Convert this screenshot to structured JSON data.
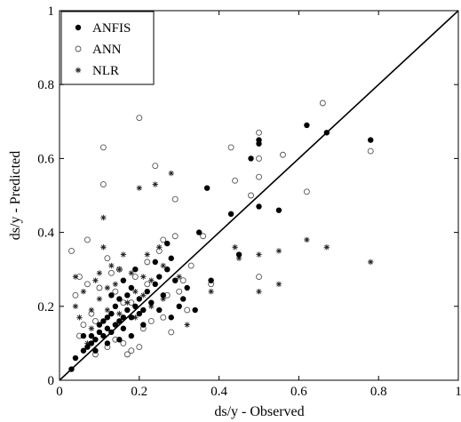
{
  "chart_data": {
    "type": "scatter",
    "xlabel": "ds/y - Observed",
    "ylabel": "ds/y - Predicted",
    "xlim": [
      0,
      1
    ],
    "ylim": [
      0,
      1
    ],
    "x_ticks": [
      "0",
      "0.2",
      "0.4",
      "0.6",
      "0.8",
      "1"
    ],
    "y_ticks": [
      "0",
      "0.2",
      "0.4",
      "0.6",
      "0.8",
      "1"
    ],
    "grid": false,
    "legend_position": "top-left",
    "reference_line": {
      "from": [
        0,
        0
      ],
      "to": [
        1,
        1
      ]
    },
    "series": [
      {
        "name": "ANFIS",
        "marker": "filled-circle",
        "points": [
          [
            0.03,
            0.03
          ],
          [
            0.04,
            0.06
          ],
          [
            0.06,
            0.08
          ],
          [
            0.07,
            0.09
          ],
          [
            0.08,
            0.1
          ],
          [
            0.08,
            0.12
          ],
          [
            0.09,
            0.11
          ],
          [
            0.1,
            0.13
          ],
          [
            0.1,
            0.15
          ],
          [
            0.11,
            0.12
          ],
          [
            0.11,
            0.16
          ],
          [
            0.12,
            0.14
          ],
          [
            0.12,
            0.17
          ],
          [
            0.13,
            0.13
          ],
          [
            0.13,
            0.18
          ],
          [
            0.14,
            0.15
          ],
          [
            0.14,
            0.2
          ],
          [
            0.15,
            0.16
          ],
          [
            0.15,
            0.22
          ],
          [
            0.16,
            0.17
          ],
          [
            0.16,
            0.14
          ],
          [
            0.17,
            0.19
          ],
          [
            0.17,
            0.23
          ],
          [
            0.18,
            0.17
          ],
          [
            0.18,
            0.25
          ],
          [
            0.19,
            0.2
          ],
          [
            0.2,
            0.18
          ],
          [
            0.2,
            0.22
          ],
          [
            0.21,
            0.19
          ],
          [
            0.22,
            0.24
          ],
          [
            0.23,
            0.21
          ],
          [
            0.24,
            0.26
          ],
          [
            0.25,
            0.28
          ],
          [
            0.26,
            0.23
          ],
          [
            0.27,
            0.3
          ],
          [
            0.28,
            0.33
          ],
          [
            0.29,
            0.27
          ],
          [
            0.31,
            0.22
          ],
          [
            0.32,
            0.25
          ],
          [
            0.34,
            0.19
          ],
          [
            0.35,
            0.4
          ],
          [
            0.37,
            0.52
          ],
          [
            0.38,
            0.27
          ],
          [
            0.43,
            0.45
          ],
          [
            0.45,
            0.34
          ],
          [
            0.48,
            0.6
          ],
          [
            0.5,
            0.47
          ],
          [
            0.5,
            0.64
          ],
          [
            0.5,
            0.65
          ],
          [
            0.55,
            0.46
          ],
          [
            0.62,
            0.69
          ],
          [
            0.67,
            0.67
          ],
          [
            0.78,
            0.65
          ],
          [
            0.06,
            0.12
          ],
          [
            0.09,
            0.08
          ],
          [
            0.12,
            0.1
          ],
          [
            0.15,
            0.11
          ],
          [
            0.18,
            0.12
          ],
          [
            0.21,
            0.15
          ],
          [
            0.25,
            0.19
          ],
          [
            0.28,
            0.17
          ],
          [
            0.3,
            0.2
          ],
          [
            0.24,
            0.32
          ],
          [
            0.27,
            0.37
          ],
          [
            0.13,
            0.23
          ],
          [
            0.16,
            0.27
          ],
          [
            0.19,
            0.3
          ]
        ]
      },
      {
        "name": "ANN",
        "marker": "open-circle",
        "points": [
          [
            0.03,
            0.35
          ],
          [
            0.04,
            0.23
          ],
          [
            0.05,
            0.12
          ],
          [
            0.06,
            0.15
          ],
          [
            0.07,
            0.38
          ],
          [
            0.08,
            0.18
          ],
          [
            0.09,
            0.07
          ],
          [
            0.1,
            0.25
          ],
          [
            0.11,
            0.63
          ],
          [
            0.11,
            0.53
          ],
          [
            0.12,
            0.09
          ],
          [
            0.13,
            0.29
          ],
          [
            0.14,
            0.11
          ],
          [
            0.15,
            0.3
          ],
          [
            0.16,
            0.21
          ],
          [
            0.17,
            0.07
          ],
          [
            0.18,
            0.08
          ],
          [
            0.19,
            0.28
          ],
          [
            0.2,
            0.71
          ],
          [
            0.21,
            0.14
          ],
          [
            0.22,
            0.32
          ],
          [
            0.23,
            0.16
          ],
          [
            0.24,
            0.58
          ],
          [
            0.25,
            0.35
          ],
          [
            0.26,
            0.38
          ],
          [
            0.27,
            0.23
          ],
          [
            0.28,
            0.13
          ],
          [
            0.29,
            0.49
          ],
          [
            0.3,
            0.24
          ],
          [
            0.31,
            0.27
          ],
          [
            0.33,
            0.31
          ],
          [
            0.36,
            0.39
          ],
          [
            0.38,
            0.26
          ],
          [
            0.43,
            0.63
          ],
          [
            0.44,
            0.54
          ],
          [
            0.48,
            0.5
          ],
          [
            0.5,
            0.55
          ],
          [
            0.5,
            0.67
          ],
          [
            0.5,
            0.6
          ],
          [
            0.5,
            0.28
          ],
          [
            0.56,
            0.61
          ],
          [
            0.62,
            0.51
          ],
          [
            0.66,
            0.75
          ],
          [
            0.78,
            0.62
          ],
          [
            0.05,
            0.28
          ],
          [
            0.07,
            0.26
          ],
          [
            0.12,
            0.33
          ],
          [
            0.14,
            0.24
          ],
          [
            0.18,
            0.21
          ],
          [
            0.22,
            0.26
          ],
          [
            0.26,
            0.17
          ],
          [
            0.29,
            0.39
          ],
          [
            0.32,
            0.19
          ],
          [
            0.16,
            0.1
          ],
          [
            0.09,
            0.16
          ],
          [
            0.2,
            0.09
          ]
        ]
      },
      {
        "name": "NLR",
        "marker": "star",
        "points": [
          [
            0.04,
            0.2
          ],
          [
            0.04,
            0.28
          ],
          [
            0.05,
            0.17
          ],
          [
            0.06,
            0.24
          ],
          [
            0.07,
            0.1
          ],
          [
            0.08,
            0.14
          ],
          [
            0.09,
            0.27
          ],
          [
            0.1,
            0.22
          ],
          [
            0.11,
            0.36
          ],
          [
            0.11,
            0.44
          ],
          [
            0.12,
            0.19
          ],
          [
            0.13,
            0.31
          ],
          [
            0.14,
            0.26
          ],
          [
            0.15,
            0.18
          ],
          [
            0.16,
            0.34
          ],
          [
            0.17,
            0.21
          ],
          [
            0.18,
            0.29
          ],
          [
            0.19,
            0.24
          ],
          [
            0.2,
            0.52
          ],
          [
            0.21,
            0.28
          ],
          [
            0.22,
            0.34
          ],
          [
            0.23,
            0.2
          ],
          [
            0.24,
            0.53
          ],
          [
            0.25,
            0.36
          ],
          [
            0.26,
            0.22
          ],
          [
            0.27,
            0.3
          ],
          [
            0.28,
            0.56
          ],
          [
            0.29,
            0.27
          ],
          [
            0.3,
            0.28
          ],
          [
            0.32,
            0.15
          ],
          [
            0.38,
            0.24
          ],
          [
            0.44,
            0.36
          ],
          [
            0.45,
            0.33
          ],
          [
            0.5,
            0.24
          ],
          [
            0.5,
            0.34
          ],
          [
            0.55,
            0.26
          ],
          [
            0.55,
            0.35
          ],
          [
            0.62,
            0.38
          ],
          [
            0.67,
            0.36
          ],
          [
            0.78,
            0.32
          ],
          [
            0.08,
            0.19
          ],
          [
            0.12,
            0.25
          ],
          [
            0.15,
            0.3
          ],
          [
            0.19,
            0.17
          ],
          [
            0.23,
            0.27
          ],
          [
            0.26,
            0.31
          ],
          [
            0.1,
            0.29
          ],
          [
            0.21,
            0.23
          ]
        ]
      }
    ]
  }
}
